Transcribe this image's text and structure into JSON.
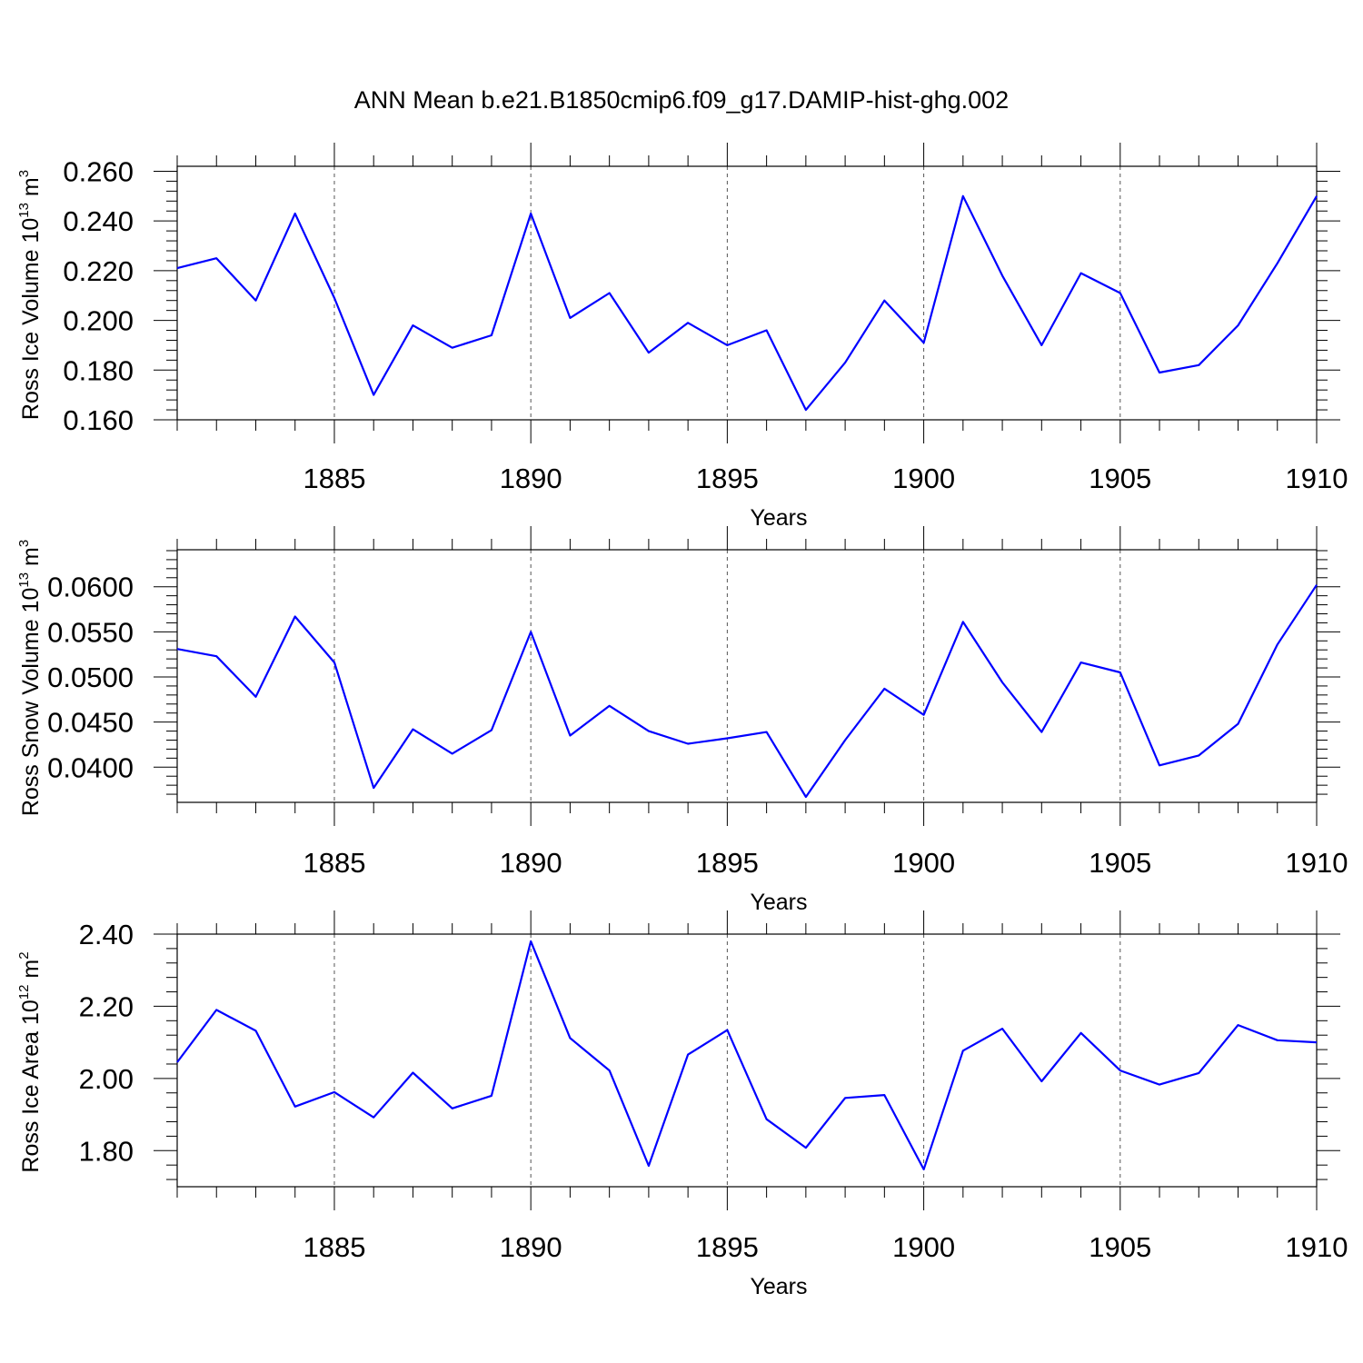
{
  "title": "ANN Mean b.e21.B1850cmip6.f09_g17.DAMIP-hist-ghg.002",
  "colors": {
    "series": "#0000ff",
    "axis": "#000000",
    "grid": "#555555"
  },
  "chart_data": [
    {
      "type": "line",
      "id": "ice-volume",
      "ylabel": {
        "text": "Ross Ice Volume 10",
        "exp": "13",
        "unit": " m",
        "unit_exp": "3"
      },
      "xlabel": "Years",
      "xlim": [
        1881,
        1910
      ],
      "ylim": [
        0.16,
        0.262
      ],
      "yticks": [
        0.16,
        0.18,
        0.2,
        0.22,
        0.24,
        0.26
      ],
      "ytick_labels": [
        "0.160",
        "0.180",
        "0.200",
        "0.220",
        "0.240",
        "0.260"
      ],
      "xticks": [
        1885,
        1890,
        1895,
        1900,
        1905,
        1910
      ],
      "xtick_labels": [
        "1885",
        "1890",
        "1895",
        "1900",
        "1905",
        "1910"
      ],
      "grid": "vertical dashed at major x ticks",
      "x": [
        1881,
        1882,
        1883,
        1884,
        1885,
        1886,
        1887,
        1888,
        1889,
        1890,
        1891,
        1892,
        1893,
        1894,
        1895,
        1896,
        1897,
        1898,
        1899,
        1900,
        1901,
        1902,
        1903,
        1904,
        1905,
        1906,
        1907,
        1908,
        1909,
        1910
      ],
      "series": [
        {
          "name": "Ross Ice Volume",
          "values": [
            0.221,
            0.225,
            0.208,
            0.243,
            0.209,
            0.17,
            0.198,
            0.189,
            0.194,
            0.243,
            0.201,
            0.211,
            0.187,
            0.199,
            0.19,
            0.196,
            0.164,
            0.183,
            0.208,
            0.191,
            0.25,
            0.218,
            0.19,
            0.219,
            0.211,
            0.179,
            0.182,
            0.198,
            0.223,
            0.25
          ]
        }
      ]
    },
    {
      "type": "line",
      "id": "snow-volume",
      "ylabel": {
        "text": "Ross Snow Volume 10",
        "exp": "13",
        "unit": " m",
        "unit_exp": "3"
      },
      "xlabel": "Years",
      "xlim": [
        1881,
        1910
      ],
      "ylim": [
        0.0361,
        0.0641
      ],
      "yticks": [
        0.04,
        0.045,
        0.05,
        0.055,
        0.06
      ],
      "ytick_labels": [
        "0.0400",
        "0.0450",
        "0.0500",
        "0.0550",
        "0.0600"
      ],
      "xticks": [
        1885,
        1890,
        1895,
        1900,
        1905,
        1910
      ],
      "xtick_labels": [
        "1885",
        "1890",
        "1895",
        "1900",
        "1905",
        "1910"
      ],
      "grid": "vertical dashed at major x ticks",
      "x": [
        1881,
        1882,
        1883,
        1884,
        1885,
        1886,
        1887,
        1888,
        1889,
        1890,
        1891,
        1892,
        1893,
        1894,
        1895,
        1896,
        1897,
        1898,
        1899,
        1900,
        1901,
        1902,
        1903,
        1904,
        1905,
        1906,
        1907,
        1908,
        1909,
        1910
      ],
      "series": [
        {
          "name": "Ross Snow Volume",
          "values": [
            0.0531,
            0.0523,
            0.0478,
            0.0567,
            0.0516,
            0.0377,
            0.0442,
            0.0415,
            0.0441,
            0.055,
            0.0435,
            0.0468,
            0.044,
            0.0426,
            0.0432,
            0.0439,
            0.0367,
            0.043,
            0.0487,
            0.0458,
            0.0561,
            0.0494,
            0.0439,
            0.0516,
            0.0505,
            0.0402,
            0.0413,
            0.0448,
            0.0536,
            0.0602
          ]
        }
      ]
    },
    {
      "type": "line",
      "id": "ice-area",
      "ylabel": {
        "text": "Ross Ice Area 10",
        "exp": "12",
        "unit": " m",
        "unit_exp": "2"
      },
      "xlabel": "Years",
      "xlim": [
        1881,
        1910
      ],
      "ylim": [
        1.7,
        2.4
      ],
      "yticks": [
        1.8,
        2.0,
        2.2,
        2.4
      ],
      "ytick_labels": [
        "1.80",
        "2.00",
        "2.20",
        "2.40"
      ],
      "xticks": [
        1885,
        1890,
        1895,
        1900,
        1905,
        1910
      ],
      "xtick_labels": [
        "1885",
        "1890",
        "1895",
        "1900",
        "1905",
        "1910"
      ],
      "grid": "vertical dashed at major x ticks",
      "x": [
        1881,
        1882,
        1883,
        1884,
        1885,
        1886,
        1887,
        1888,
        1889,
        1890,
        1891,
        1892,
        1893,
        1894,
        1895,
        1896,
        1897,
        1898,
        1899,
        1900,
        1901,
        1902,
        1903,
        1904,
        1905,
        1906,
        1907,
        1908,
        1909,
        1910
      ],
      "series": [
        {
          "name": "Ross Ice Area",
          "values": [
            2.045,
            2.19,
            2.132,
            1.922,
            1.962,
            1.892,
            2.016,
            1.917,
            1.952,
            2.38,
            2.112,
            2.022,
            1.758,
            2.066,
            2.134,
            1.887,
            1.808,
            1.946,
            1.954,
            1.748,
            2.077,
            2.138,
            1.992,
            2.126,
            2.022,
            1.983,
            2.015,
            2.148,
            2.106,
            2.1
          ]
        }
      ]
    }
  ]
}
